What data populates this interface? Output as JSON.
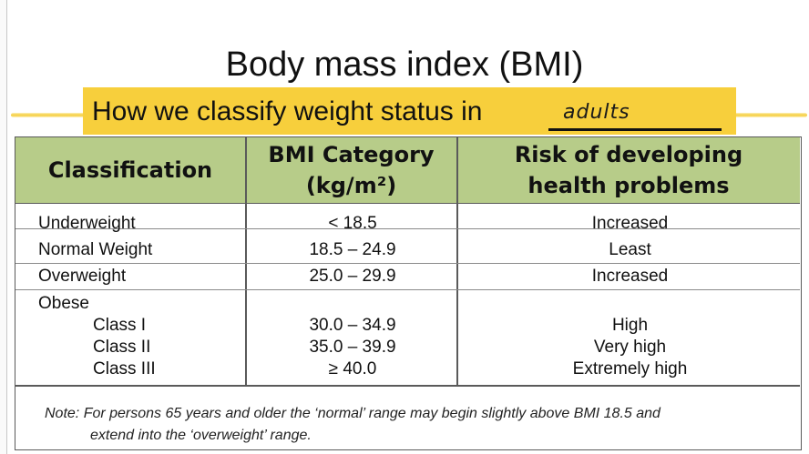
{
  "title": "Body mass index (BMI)",
  "subtitle": "How we classify weight status in",
  "blank_answer": "adults",
  "colors": {
    "header_fill": "#b7cc89",
    "highlight": "#f7cf3c"
  },
  "table": {
    "headers": {
      "classification": "Classification",
      "bmi_line1": "BMI Category",
      "bmi_line2": "(kg/m²)",
      "risk_line1": "Risk of developing",
      "risk_line2": "health problems"
    },
    "rows": [
      {
        "classification": "Underweight",
        "bmi": "< 18.5",
        "risk": "Increased"
      },
      {
        "classification": "Normal Weight",
        "bmi": "18.5 – 24.9",
        "risk": "Least"
      },
      {
        "classification": "Overweight",
        "bmi": "25.0 – 29.9",
        "risk": "Increased"
      }
    ],
    "obese": {
      "label": "Obese",
      "classes": [
        {
          "name": "Class I",
          "bmi": "30.0 – 34.9",
          "risk": "High"
        },
        {
          "name": "Class II",
          "bmi": "35.0 – 39.9",
          "risk": "Very high"
        },
        {
          "name": "Class III",
          "bmi": "≥ 40.0",
          "risk": "Extremely high"
        }
      ]
    },
    "note_line1": "Note: For persons 65 years and older the ‘normal’ range may begin slightly above BMI 18.5 and",
    "note_line2": "extend into the ‘overweight’ range."
  }
}
